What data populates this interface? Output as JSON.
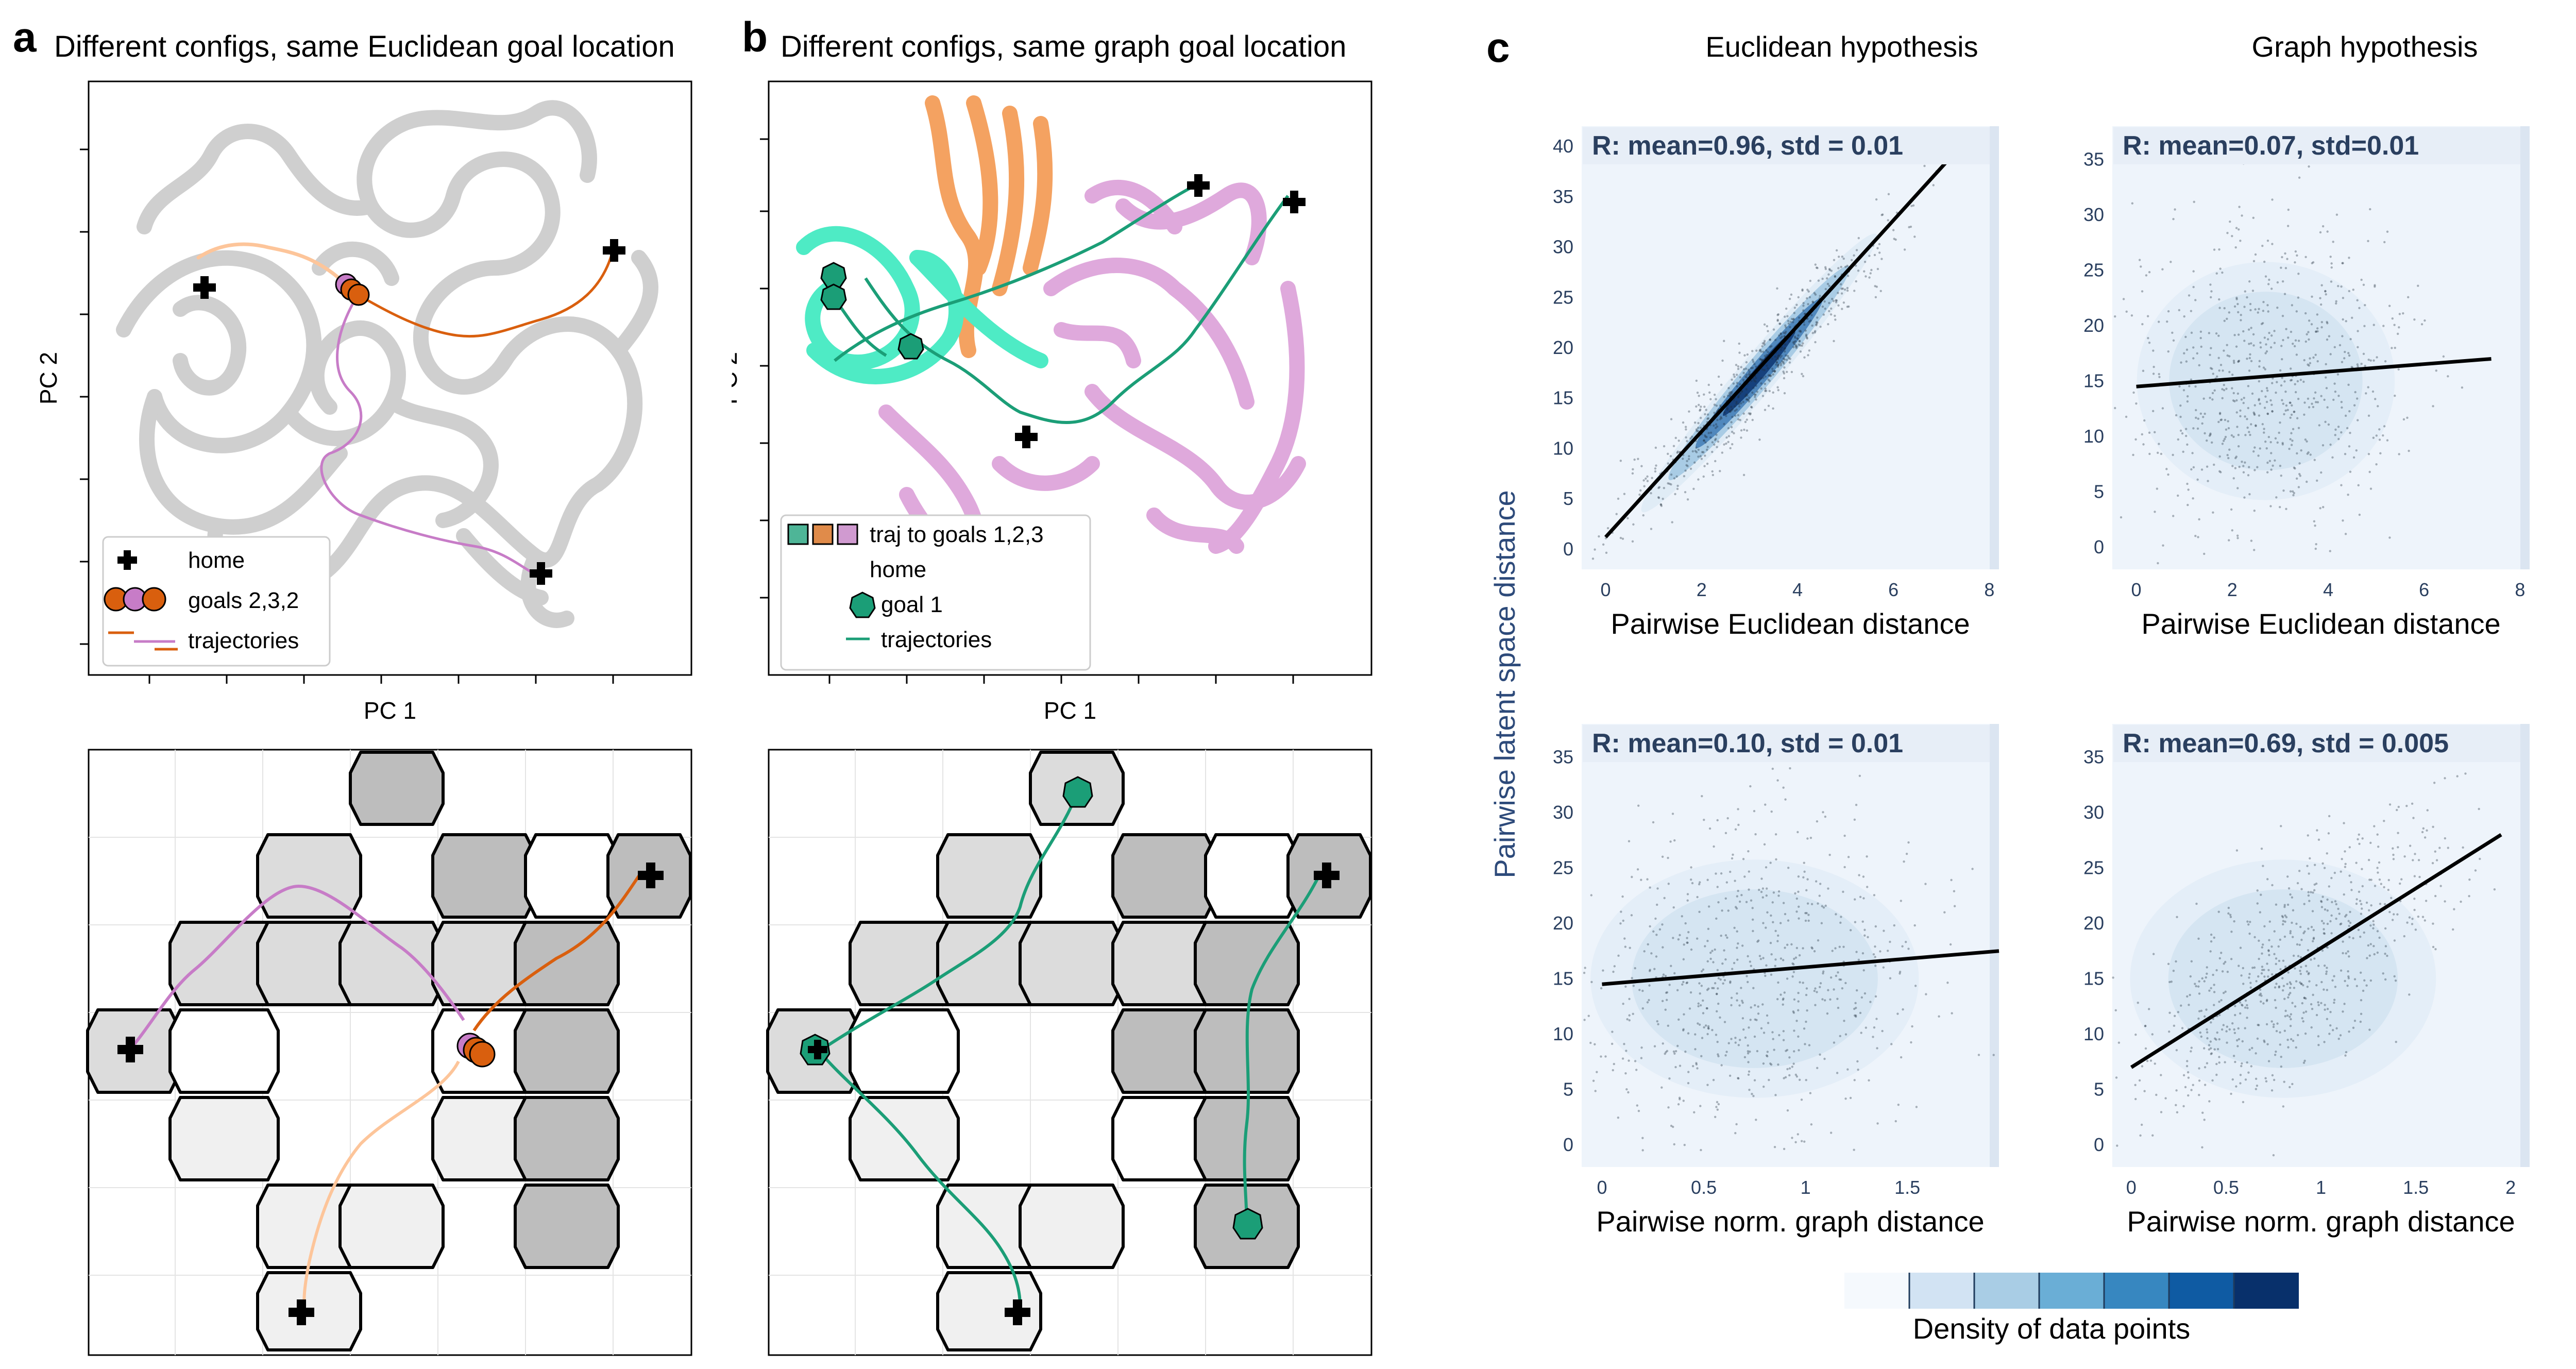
{
  "panel_a": {
    "letter": "a",
    "title": "Different configs, same Euclidean goal location",
    "xlabel": "PC 1",
    "ylabel": "PC 2",
    "legend": [
      "home",
      "goals 2,3,2",
      "trajectories"
    ]
  },
  "panel_b": {
    "letter": "b",
    "title": "Different configs, same graph goal location",
    "xlabel": "PC 1",
    "ylabel": "PC 2",
    "legend": [
      "traj to goals 1,2,3",
      "home",
      "goal 1",
      "trajectories"
    ]
  },
  "panel_c": {
    "letter": "c",
    "col1": "Euclidean hypothesis",
    "col2": "Graph hypothesis",
    "ylabel": "Pairwise latent  space distance",
    "colorbar_label": "Density of data points",
    "colorbar_colors": [
      "#f5f9fd",
      "#d2e3f3",
      "#a9cde5",
      "#6aaed6",
      "#3787c0",
      "#0f5ba3",
      "#08306b"
    ]
  },
  "colors": {
    "trajectory_orange": "#d95f0e",
    "trajectory_pink": "#c77cc7",
    "trajectory_peach": "#fdc59a",
    "goal_green": "#1b9e77",
    "traj_teal": "#4eebc5",
    "traj_orange": "#f4a261",
    "traj_pink": "#dfa9dc",
    "scatter_bg": "#eef4fb",
    "tick_color": "#2a3f5f"
  },
  "chart_data": [
    {
      "type": "scatter",
      "id": "euclid-vs-euclid",
      "stat": "R: mean=0.96, std = 0.01",
      "xlabel": "Pairwise Euclidean distance",
      "xlim": [
        -0.5,
        8.2
      ],
      "ylim": [
        -2,
        42
      ],
      "xticks": [
        0,
        2,
        4,
        6,
        8
      ],
      "yticks": [
        0,
        5,
        10,
        15,
        20,
        25,
        30,
        35,
        40
      ],
      "regression": {
        "x": [
          0,
          7.4
        ],
        "y": [
          1.2,
          40
        ]
      },
      "cloud": {
        "cx": 3.2,
        "cy": 17.5,
        "sx": 1.4,
        "sy": 7.5,
        "rho": 0.96
      }
    },
    {
      "type": "scatter",
      "id": "graph-vs-euclid",
      "stat": "R: mean=0.07, std=0.01",
      "xlabel": "Pairwise Euclidean distance",
      "xlim": [
        -0.5,
        8.2
      ],
      "ylim": [
        -2,
        38
      ],
      "xticks": [
        0,
        2,
        4,
        6,
        8
      ],
      "yticks": [
        0,
        5,
        10,
        15,
        20,
        25,
        30,
        35
      ],
      "regression": {
        "x": [
          0,
          7.4
        ],
        "y": [
          14.5,
          17
        ]
      },
      "cloud": {
        "cx": 2.7,
        "cy": 15,
        "sx": 1.4,
        "sy": 7,
        "rho": 0.07
      }
    },
    {
      "type": "scatter",
      "id": "euclid-vs-graph",
      "stat": "R: mean=0.10, std = 0.01",
      "xlabel": "Pairwise norm. graph distance",
      "xlim": [
        -0.1,
        1.95
      ],
      "ylim": [
        -2,
        38
      ],
      "xticks": [
        0,
        0.5,
        1,
        1.5
      ],
      "yticks": [
        0,
        5,
        10,
        15,
        20,
        25,
        30,
        35
      ],
      "regression": {
        "x": [
          0,
          1.95
        ],
        "y": [
          14.5,
          17.5
        ]
      },
      "cloud": {
        "cx": 0.75,
        "cy": 15,
        "sx": 0.42,
        "sy": 7,
        "rho": 0.1
      }
    },
    {
      "type": "scatter",
      "id": "graph-vs-graph",
      "stat": "R: mean=0.69, std = 0.005",
      "xlabel": "Pairwise norm. graph distance",
      "xlim": [
        -0.1,
        2.1
      ],
      "ylim": [
        -2,
        38
      ],
      "xticks": [
        0,
        0.5,
        1,
        1.5,
        2
      ],
      "yticks": [
        0,
        5,
        10,
        15,
        20,
        25,
        30,
        35
      ],
      "regression": {
        "x": [
          0,
          1.95
        ],
        "y": [
          7,
          28
        ]
      },
      "cloud": {
        "cx": 0.8,
        "cy": 15,
        "sx": 0.42,
        "sy": 7,
        "rho": 0.69
      }
    }
  ]
}
